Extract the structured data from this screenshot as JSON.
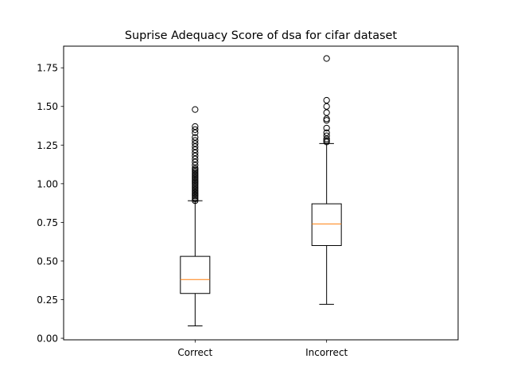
{
  "chart_data": {
    "type": "box",
    "title": "Suprise Adequacy Score of dsa for cifar dataset",
    "xlabel": "",
    "ylabel": "",
    "categories": [
      "Correct",
      "Incorrect"
    ],
    "ylim": [
      -0.01,
      1.89
    ],
    "yticks": [
      0.0,
      0.25,
      0.5,
      0.75,
      1.0,
      1.25,
      1.5,
      1.75
    ],
    "ytick_labels": [
      "0.00",
      "0.25",
      "0.50",
      "0.75",
      "1.00",
      "1.25",
      "1.50",
      "1.75"
    ],
    "grid": false,
    "boxes": [
      {
        "category": "Correct",
        "whisker_low": 0.08,
        "q1": 0.29,
        "median": 0.38,
        "q3": 0.53,
        "whisker_high": 0.89,
        "outliers": [
          0.89,
          0.9,
          0.91,
          0.92,
          0.93,
          0.94,
          0.95,
          0.96,
          0.97,
          0.98,
          0.99,
          1.0,
          1.01,
          1.02,
          1.03,
          1.04,
          1.05,
          1.06,
          1.07,
          1.08,
          1.09,
          1.1,
          1.12,
          1.14,
          1.16,
          1.18,
          1.2,
          1.22,
          1.24,
          1.26,
          1.28,
          1.3,
          1.33,
          1.35,
          1.37,
          1.48
        ]
      },
      {
        "category": "Incorrect",
        "whisker_low": 0.22,
        "q1": 0.6,
        "median": 0.74,
        "q3": 0.87,
        "whisker_high": 1.26,
        "outliers": [
          1.27,
          1.28,
          1.29,
          1.31,
          1.33,
          1.36,
          1.41,
          1.42,
          1.46,
          1.5,
          1.54,
          1.81
        ]
      }
    ],
    "colors": {
      "box": "#000000",
      "median": "#ff7f0e",
      "outlier": "#000000"
    }
  }
}
